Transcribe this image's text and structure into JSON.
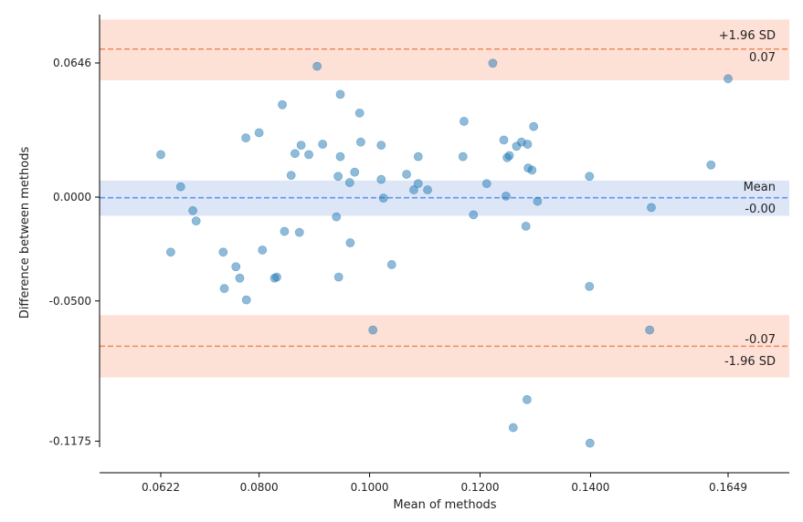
{
  "chart_data": {
    "type": "scatter",
    "title": "",
    "xlabel": "Mean of methods",
    "ylabel": "Difference between methods",
    "xlim": [
      0.0514,
      0.1757
    ],
    "ylim": [
      -0.1288,
      0.0855
    ],
    "x_ticks": [
      0.0622,
      0.08,
      0.1,
      0.12,
      0.14,
      0.1649
    ],
    "x_tick_labels": [
      "0.0622",
      "0.0800",
      "0.1000",
      "0.1200",
      "0.1400",
      "0.1649"
    ],
    "y_ticks": [
      -0.1175,
      -0.05,
      0.0,
      0.0646
    ],
    "y_tick_labels": [
      "-0.1175",
      "-0.0500",
      "0.0000",
      "0.0646"
    ],
    "mean": {
      "value": -0.0003,
      "label": "Mean",
      "value_label": "-0.00",
      "ci": [
        -0.009,
        0.008
      ]
    },
    "upper_loa": {
      "value": 0.0713,
      "label": "+1.96 SD",
      "value_label": "0.07",
      "ci": [
        0.0563,
        0.0855
      ]
    },
    "lower_loa": {
      "value": -0.0718,
      "label": "-1.96 SD",
      "value_label": "-0.07",
      "ci": [
        -0.0868,
        -0.0568
      ]
    },
    "colors": {
      "points": "#1f77b4",
      "mean_line": "#6495ed",
      "mean_band": "#dde6f7",
      "loa_line": "#f08a5d",
      "loa_band": "#fde0d6",
      "axis": "#000000"
    },
    "points": [
      [
        0.0622,
        0.0205
      ],
      [
        0.064,
        -0.0265
      ],
      [
        0.0658,
        0.005
      ],
      [
        0.068,
        -0.0065
      ],
      [
        0.0686,
        -0.0115
      ],
      [
        0.0735,
        -0.0265
      ],
      [
        0.0737,
        -0.044
      ],
      [
        0.0758,
        -0.0335
      ],
      [
        0.0765,
        -0.039
      ],
      [
        0.0776,
        0.0285
      ],
      [
        0.0777,
        -0.0495
      ],
      [
        0.08,
        0.031
      ],
      [
        0.0806,
        -0.0255
      ],
      [
        0.0828,
        -0.039
      ],
      [
        0.0832,
        -0.0385
      ],
      [
        0.0842,
        0.0445
      ],
      [
        0.0846,
        -0.0165
      ],
      [
        0.0858,
        0.0105
      ],
      [
        0.0865,
        0.021
      ],
      [
        0.0873,
        -0.017
      ],
      [
        0.0876,
        0.025
      ],
      [
        0.089,
        0.0205
      ],
      [
        0.0905,
        0.063
      ],
      [
        0.0915,
        0.0255
      ],
      [
        0.094,
        -0.0095
      ],
      [
        0.0943,
        0.01
      ],
      [
        0.0944,
        -0.0385
      ],
      [
        0.0947,
        0.0495
      ],
      [
        0.0947,
        0.0195
      ],
      [
        0.0964,
        0.007
      ],
      [
        0.0965,
        -0.022
      ],
      [
        0.0973,
        0.012
      ],
      [
        0.0982,
        0.0405
      ],
      [
        0.0984,
        0.0265
      ],
      [
        0.1006,
        -0.064
      ],
      [
        0.1021,
        0.0085
      ],
      [
        0.1021,
        0.025
      ],
      [
        0.1025,
        -0.0005
      ],
      [
        0.104,
        -0.0325
      ],
      [
        0.1067,
        0.011
      ],
      [
        0.108,
        0.0035
      ],
      [
        0.1088,
        0.0065
      ],
      [
        0.1088,
        0.0195
      ],
      [
        0.1105,
        0.0035
      ],
      [
        0.1169,
        0.0195
      ],
      [
        0.1171,
        0.0365
      ],
      [
        0.1188,
        -0.0085
      ],
      [
        0.1212,
        0.0065
      ],
      [
        0.1223,
        0.0645
      ],
      [
        0.1243,
        0.0275
      ],
      [
        0.1247,
        0.0005
      ],
      [
        0.1249,
        0.019
      ],
      [
        0.1253,
        0.02
      ],
      [
        0.126,
        -0.111
      ],
      [
        0.1266,
        0.0245
      ],
      [
        0.1275,
        0.0265
      ],
      [
        0.1283,
        -0.014
      ],
      [
        0.1285,
        -0.0975
      ],
      [
        0.1286,
        0.0255
      ],
      [
        0.1287,
        0.014
      ],
      [
        0.1294,
        0.013
      ],
      [
        0.1297,
        0.034
      ],
      [
        0.1304,
        -0.002
      ],
      [
        0.1398,
        0.01
      ],
      [
        0.1398,
        -0.043
      ],
      [
        0.1399,
        -0.1185
      ],
      [
        0.1507,
        -0.064
      ],
      [
        0.151,
        -0.005
      ],
      [
        0.1618,
        0.0155
      ],
      [
        0.1649,
        0.057
      ]
    ]
  }
}
